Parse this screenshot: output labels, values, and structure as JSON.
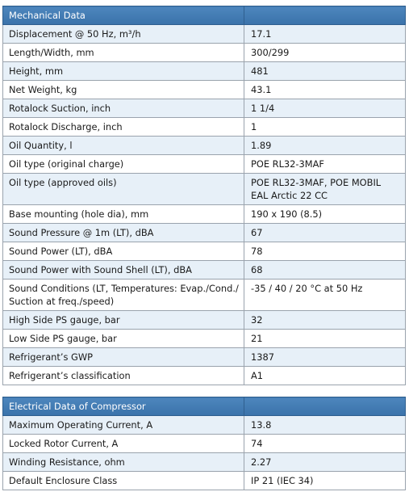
{
  "mechanical": {
    "title": "Mechanical Data",
    "rows": [
      {
        "label": "Displacement @ 50 Hz, m³/h",
        "value": "17.1"
      },
      {
        "label": "Length/Width, mm",
        "value": "300/299"
      },
      {
        "label": "Height, mm",
        "value": "481"
      },
      {
        "label": "Net Weight, kg",
        "value": "43.1"
      },
      {
        "label": "Rotalock Suction, inch",
        "value": "1 1/4"
      },
      {
        "label": "Rotalock Discharge, inch",
        "value": "1"
      },
      {
        "label": "Oil Quantity, l",
        "value": "1.89"
      },
      {
        "label": "Oil type (original charge)",
        "value": "POE RL32-3MAF"
      },
      {
        "label": "Oil type (approved oils)",
        "value": "POE RL32-3MAF, POE MOBIL EAL Arctic 22 CC"
      },
      {
        "label": "Base mounting (hole dia), mm",
        "value": "190 x 190 (8.5)"
      },
      {
        "label": "Sound Pressure @ 1m (LT), dBA",
        "value": "67"
      },
      {
        "label": "Sound Power (LT), dBA",
        "value": "78"
      },
      {
        "label": "Sound Power with Sound Shell (LT), dBA",
        "value": "68"
      },
      {
        "label": "Sound Conditions (LT, Temperatures: Evap./Cond./ Suction at freq./speed)",
        "value": "-35 / 40 / 20 °C at 50 Hz"
      },
      {
        "label": "High Side PS gauge, bar",
        "value": "32"
      },
      {
        "label": "Low Side PS gauge, bar",
        "value": "21"
      },
      {
        "label": "Refrigerant’s GWP",
        "value": "1387"
      },
      {
        "label": "Refrigerant’s classification",
        "value": "A1"
      }
    ]
  },
  "electrical": {
    "title": "Electrical Data of Compressor",
    "rows": [
      {
        "label": "Maximum Operating Current, A",
        "value": "13.8"
      },
      {
        "label": "Locked Rotor Current, A",
        "value": "74"
      },
      {
        "label": "Winding Resistance, ohm",
        "value": "2.27"
      },
      {
        "label": "Default Enclosure Class",
        "value": "IP 21 (IEC 34)"
      }
    ]
  },
  "colors": {
    "header_bg": "#3f78b0",
    "row_alt_bg": "#e7f0f8",
    "border": "#9aa3ad"
  }
}
